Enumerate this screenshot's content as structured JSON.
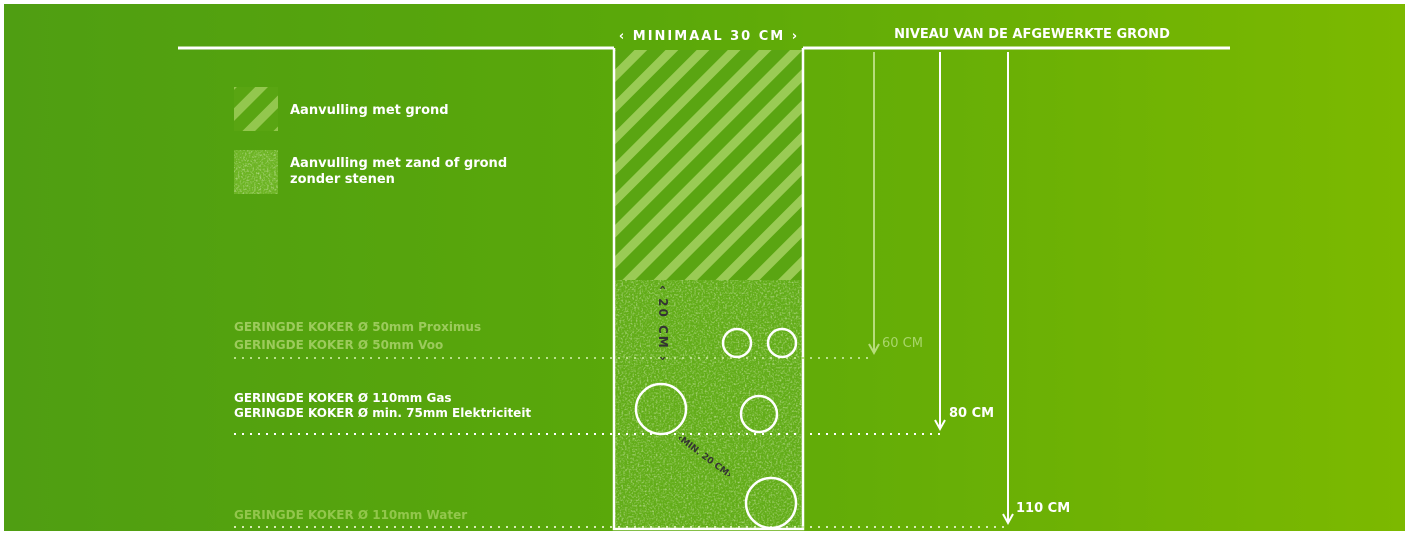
{
  "header": {
    "trench_width": "‹ MINIMAAL 30 CM ›",
    "ground_level": "NIVEAU VAN DE AFGEWERKTE GROND"
  },
  "legend": {
    "hatch_label": "Aanvulling met grond",
    "sand_label_line1": "Aanvulling met zand of grond",
    "sand_label_line2": "zonder stenen"
  },
  "pipes": {
    "proximus": "GERINGDE KOKER Ø 50mm Proximus",
    "voo": "GERINGDE KOKER Ø 50mm Voo",
    "gas": "GERINGDE KOKER Ø 110mm Gas",
    "elektriciteit": "GERINGDE KOKER Ø min. 75mm Elektriciteit",
    "water": "GERINGDE KOKER Ø 110mm Water"
  },
  "depths": {
    "d60": "60 CM",
    "d80": "80 CM",
    "d110": "110 CM"
  },
  "spacing": {
    "vertical": "‹ 20 CM ›",
    "diagonal": "‹MIN. 20 CM›"
  },
  "colors": {
    "bg_left": "#4f9d12",
    "bg_right": "#7ab800",
    "line": "#ffffff"
  }
}
